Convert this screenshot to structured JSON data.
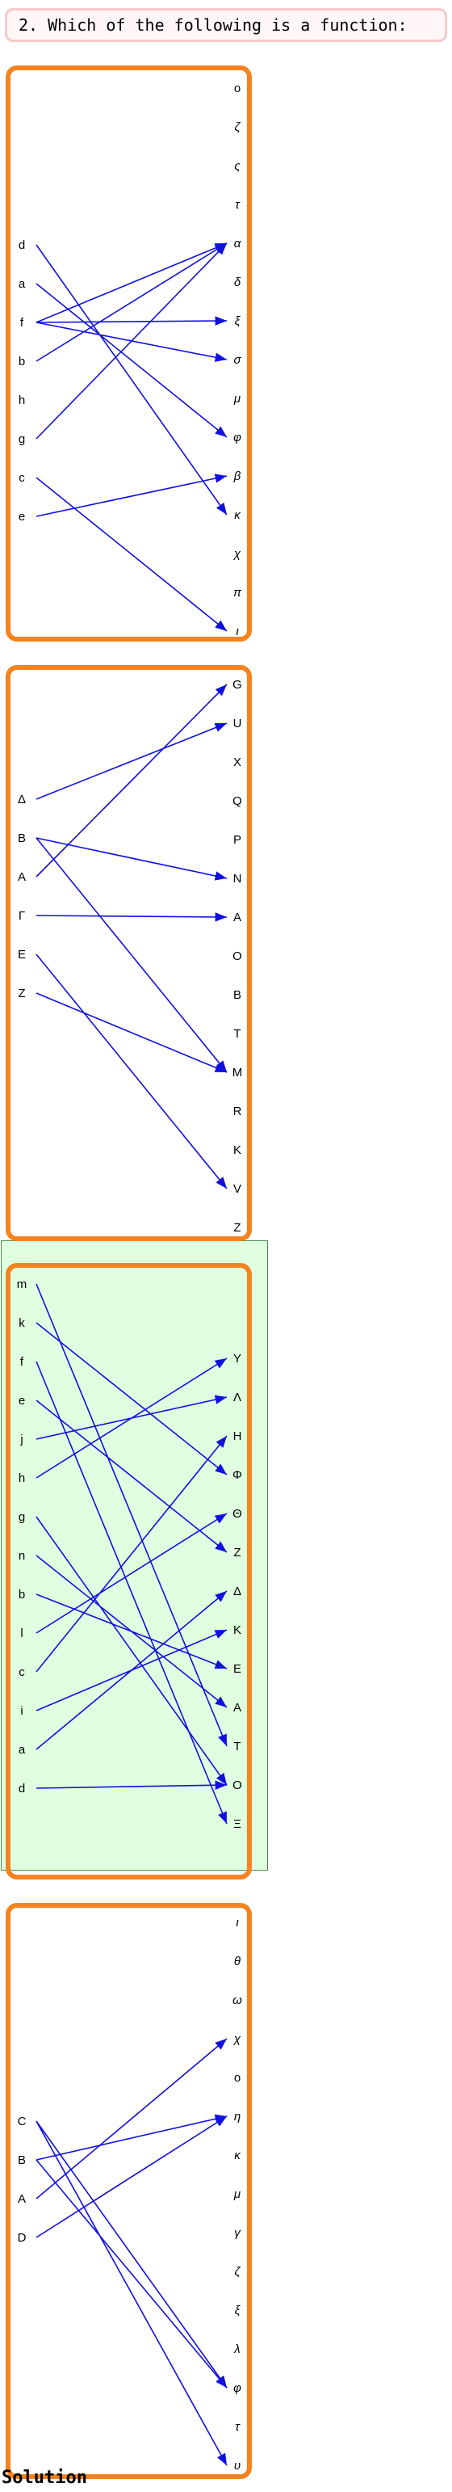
{
  "question": "2. Which of the following is a function:",
  "solution_label": "Solution",
  "colors": {
    "panel_border": "#f5831f",
    "arrow": "#1010e0",
    "highlight_bg": "#e0ffe0"
  },
  "options": [
    {
      "highlighted": false,
      "left": [
        "d",
        "a",
        "f",
        "b",
        "h",
        "g",
        "c",
        "e"
      ],
      "right": [
        "o",
        "ζ",
        "ς",
        "τ",
        "α",
        "δ",
        "ξ",
        "σ",
        "μ",
        "φ",
        "β",
        "κ",
        "χ",
        "π",
        "ι"
      ],
      "arrows": [
        [
          "d",
          "κ"
        ],
        [
          "a",
          "φ"
        ],
        [
          "f",
          "α"
        ],
        [
          "f",
          "ξ"
        ],
        [
          "f",
          "σ"
        ],
        [
          "b",
          "α"
        ],
        [
          "g",
          "α"
        ],
        [
          "c",
          "ι"
        ],
        [
          "e",
          "β"
        ]
      ]
    },
    {
      "highlighted": false,
      "left": [
        "Δ",
        "B",
        "A",
        "Γ",
        "E",
        "Z"
      ],
      "right": [
        "G",
        "U",
        "X",
        "Q",
        "P",
        "N",
        "A",
        "O",
        "B",
        "T",
        "M",
        "R",
        "K",
        "V",
        "Z"
      ],
      "arrows": [
        [
          "Δ",
          "U"
        ],
        [
          "B",
          "N"
        ],
        [
          "B",
          "M"
        ],
        [
          "A",
          "G"
        ],
        [
          "Γ",
          "A"
        ],
        [
          "E",
          "V"
        ],
        [
          "Z",
          "M"
        ]
      ]
    },
    {
      "highlighted": true,
      "left": [
        "m",
        "k",
        "f",
        "e",
        "j",
        "h",
        "g",
        "n",
        "b",
        "l",
        "c",
        "i",
        "a",
        "d"
      ],
      "right": [
        "Y",
        "Λ",
        "H",
        "Φ",
        "Θ",
        "Z",
        "Δ",
        "K",
        "E",
        "A",
        "T",
        "O",
        "Ξ"
      ],
      "arrows": [
        [
          "m",
          "T"
        ],
        [
          "k",
          "Φ"
        ],
        [
          "f",
          "Ξ"
        ],
        [
          "e",
          "Z"
        ],
        [
          "j",
          "Λ"
        ],
        [
          "h",
          "Y"
        ],
        [
          "g",
          "O"
        ],
        [
          "n",
          "A"
        ],
        [
          "b",
          "E"
        ],
        [
          "l",
          "Θ"
        ],
        [
          "c",
          "H"
        ],
        [
          "i",
          "K"
        ],
        [
          "a",
          "Δ"
        ],
        [
          "d",
          "O"
        ]
      ]
    },
    {
      "highlighted": false,
      "left": [
        "C",
        "B",
        "A",
        "D"
      ],
      "right": [
        "ι",
        "θ",
        "ω",
        "χ",
        "o",
        "η",
        "κ",
        "μ",
        "γ",
        "ζ",
        "ξ",
        "λ",
        "φ",
        "τ",
        "υ"
      ],
      "arrows": [
        [
          "C",
          "φ"
        ],
        [
          "C",
          "υ"
        ],
        [
          "B",
          "η"
        ],
        [
          "B",
          "φ"
        ],
        [
          "A",
          "χ"
        ],
        [
          "D",
          "η"
        ]
      ]
    }
  ]
}
